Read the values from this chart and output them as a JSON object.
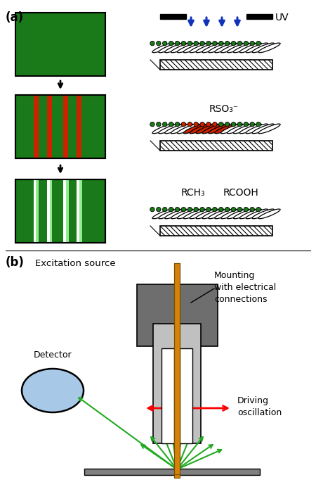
{
  "bg_color": "#ffffff",
  "dark_green": "#1a7a1a",
  "pale_green": "#90ee90",
  "red_stripe": "#cc2200",
  "blue_arrow": "#1133bb",
  "orange_bar": "#d4820a",
  "dark_gray": "#6e6e6e",
  "light_gray": "#c0c0c0",
  "blue_detector": "#a8c8e8",
  "arrow_green": "#22aa22",
  "label_a": "(a)",
  "label_b": "(b)",
  "text_uv": "UV",
  "text_rso3": "RSO₃⁻",
  "text_rch3": "RCH₃",
  "text_rcooh": "RCOOH",
  "text_excitation": "Excitation source",
  "text_mounting": "Mounting\nwith electrical\nconnections",
  "text_detector": "Detector",
  "text_driving": "Driving\noscillation"
}
